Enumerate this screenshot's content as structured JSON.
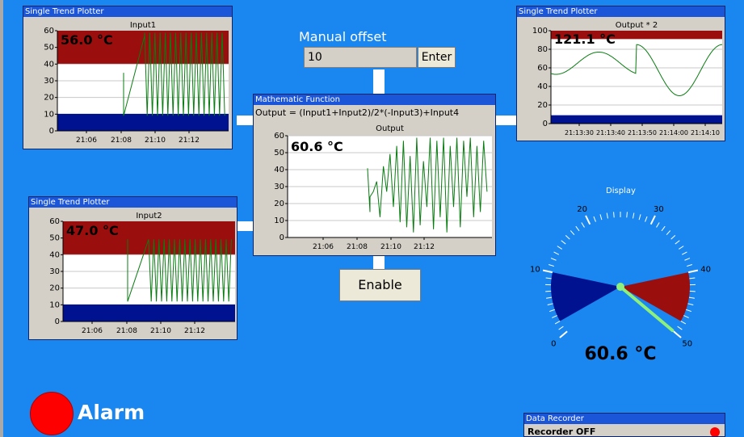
{
  "colors": {
    "background": "#1a86ef",
    "band_high": "#9b0e0e",
    "band_low": "#00128f",
    "trace": "#0a7d12",
    "alarm": "#ff0000"
  },
  "input1": {
    "title": "Single Trend Plotter",
    "plot_label": "Input1",
    "readout": "56.0 °C",
    "y_ticks": [
      "60",
      "50",
      "40",
      "30",
      "20",
      "10",
      "0"
    ],
    "x_ticks": [
      "21:06",
      "21:08",
      "21:10",
      "21:12"
    ]
  },
  "input2": {
    "title": "Single Trend Plotter",
    "plot_label": "Input2",
    "readout": "47.0 °C",
    "y_ticks": [
      "60",
      "50",
      "40",
      "30",
      "20",
      "10",
      "0"
    ],
    "x_ticks": [
      "21:06",
      "21:08",
      "21:10",
      "21:12"
    ]
  },
  "math": {
    "title": "Mathematic Function",
    "formula": "Output = (Input1+Input2)/2*(-Input3)+Input4",
    "plot_label": "Output",
    "readout": "60.6 °C",
    "y_ticks": [
      "60",
      "50",
      "40",
      "30",
      "20",
      "10",
      "0"
    ],
    "x_ticks": [
      "21:06",
      "21:08",
      "21:10",
      "21:12"
    ]
  },
  "output2": {
    "title": "Single Trend Plotter",
    "plot_label": "Output * 2",
    "readout": "121.1 °C",
    "y_ticks": [
      "100",
      "80",
      "60",
      "40",
      "20",
      "0"
    ],
    "x_ticks": [
      "21:13:30",
      "21:13:40",
      "21:13:50",
      "21:14:00",
      "21:14:10"
    ]
  },
  "offset": {
    "label": "Manual offset",
    "value": "10",
    "enter_label": "Enter"
  },
  "enable": {
    "label": "Enable"
  },
  "gauge": {
    "label": "Display",
    "ticks": [
      "0",
      "10",
      "20",
      "30",
      "40",
      "50"
    ],
    "value": 60.6,
    "readout": "60.6 °C"
  },
  "alarm": {
    "label": "Alarm"
  },
  "recorder": {
    "title": "Data Recorder",
    "status": "Recorder OFF"
  }
}
